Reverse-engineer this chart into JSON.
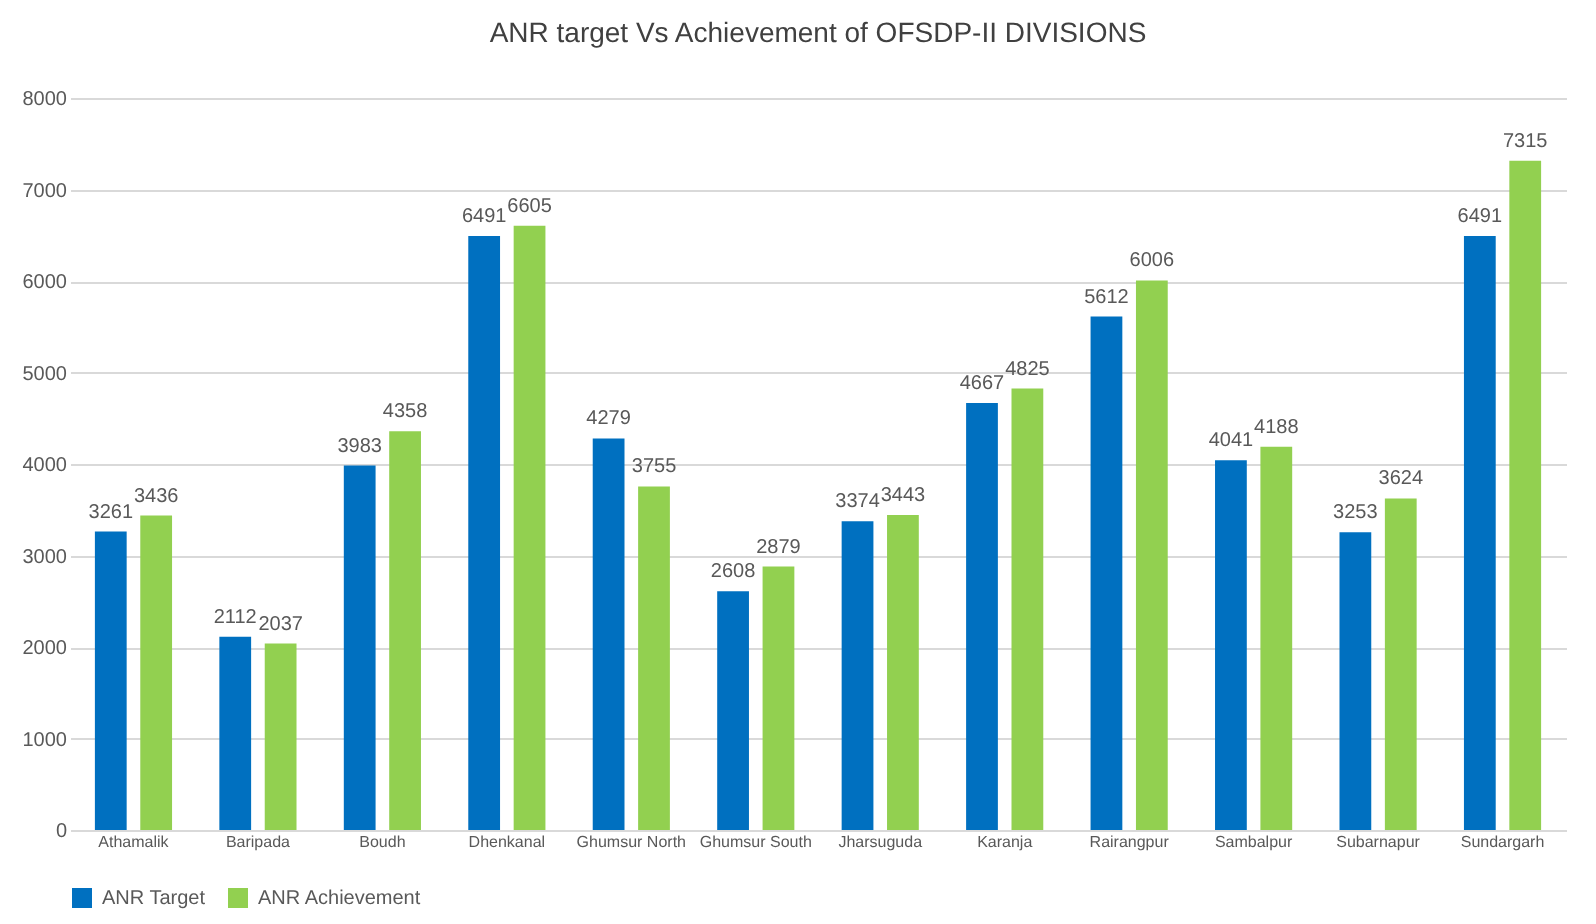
{
  "chart_data": {
    "type": "bar",
    "title": "ANR target Vs Achievement of OFSDP-II DIVISIONS",
    "categories": [
      "Athamalik",
      "Baripada",
      "Boudh",
      "Dhenkanal",
      "Ghumsur North",
      "Ghumsur South",
      "Jharsuguda",
      "Karanja",
      "Rairangpur",
      "Sambalpur",
      "Subarnapur",
      "Sundargarh"
    ],
    "series": [
      {
        "name": "ANR Target",
        "color": "#0070c0",
        "values": [
          3261,
          2112,
          3983,
          6491,
          4279,
          2608,
          3374,
          4667,
          5612,
          4041,
          3253,
          6491
        ]
      },
      {
        "name": "ANR Achievement",
        "color": "#92d050",
        "values": [
          3436,
          2037,
          4358,
          6605,
          3755,
          2879,
          3443,
          4825,
          6006,
          4188,
          3624,
          7315
        ]
      }
    ],
    "ylim": [
      0,
      8000
    ],
    "yticks": [
      0,
      1000,
      2000,
      3000,
      4000,
      5000,
      6000,
      7000,
      8000
    ],
    "grid": "y",
    "legend": "bottom",
    "data_labels": true
  }
}
